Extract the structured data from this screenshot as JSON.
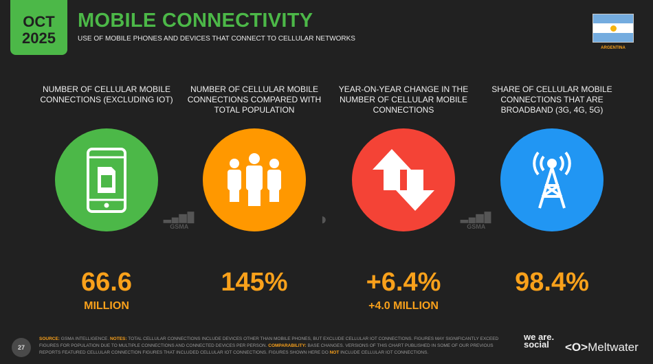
{
  "header": {
    "month": "OCT",
    "year": "2025",
    "title": "MOBILE CONNECTIVITY",
    "subtitle": "USE OF MOBILE PHONES AND DEVICES THAT CONNECT TO CELLULAR NETWORKS",
    "country": "ARGENTINA"
  },
  "colors": {
    "green": "#4cb848",
    "orange": "#ff9800",
    "red": "#f44336",
    "blue": "#2196f3",
    "value": "#f9a11b"
  },
  "stats": [
    {
      "label": "NUMBER OF CELLULAR MOBILE CONNECTIONS (EXCLUDING IOT)",
      "icon": "mobile-phone-sim-icon",
      "value": "66.6",
      "sub": "MILLION"
    },
    {
      "label": "NUMBER OF CELLULAR MOBILE CONNECTIONS COMPARED WITH TOTAL POPULATION",
      "icon": "people-icon",
      "value": "145%",
      "sub": ""
    },
    {
      "label": "YEAR-ON-YEAR CHANGE IN THE NUMBER OF CELLULAR MOBILE CONNECTIONS",
      "icon": "up-down-arrows-icon",
      "value": "+6.4%",
      "sub": "+4.0 MILLION"
    },
    {
      "label": "SHARE OF CELLULAR MOBILE CONNECTIONS THAT ARE BROADBAND (3G, 4G, 5G)",
      "icon": "cell-tower-icon",
      "value": "98.4%",
      "sub": ""
    }
  ],
  "sources": {
    "gsma": "GSMA"
  },
  "footer": {
    "source_label": "SOURCE:",
    "source": "GSMA INTELLIGENCE.",
    "notes_label": "NOTES:",
    "notes": "TOTAL CELLULAR CONNECTIONS INCLUDE DEVICES OTHER THAN MOBILE PHONES, BUT EXCLUDE CELLULAR IOT CONNECTIONS. FIGURES MAY SIGNIFICANTLY EXCEED FIGURES FOR POPULATION DUE TO MULTIPLE CONNECTIONS AND CONNECTED DEVICES PER PERSON.",
    "comp_label": "COMPARABILITY:",
    "comp": "BASE CHANGES. VERSIONS OF THIS CHART PUBLISHED IN SOME OF OUR PREVIOUS REPORTS FEATURED CELLULAR CONNECTION FIGURES THAT INCLUDED CELLULAR IOT CONNECTIONS. FIGURES SHOWN HERE DO",
    "not": "NOT",
    "end": "INCLUDE CELLULAR IOT CONNECTIONS.",
    "page": "27"
  },
  "brands": {
    "was": "we are. social",
    "meltwater": "Meltwater"
  }
}
